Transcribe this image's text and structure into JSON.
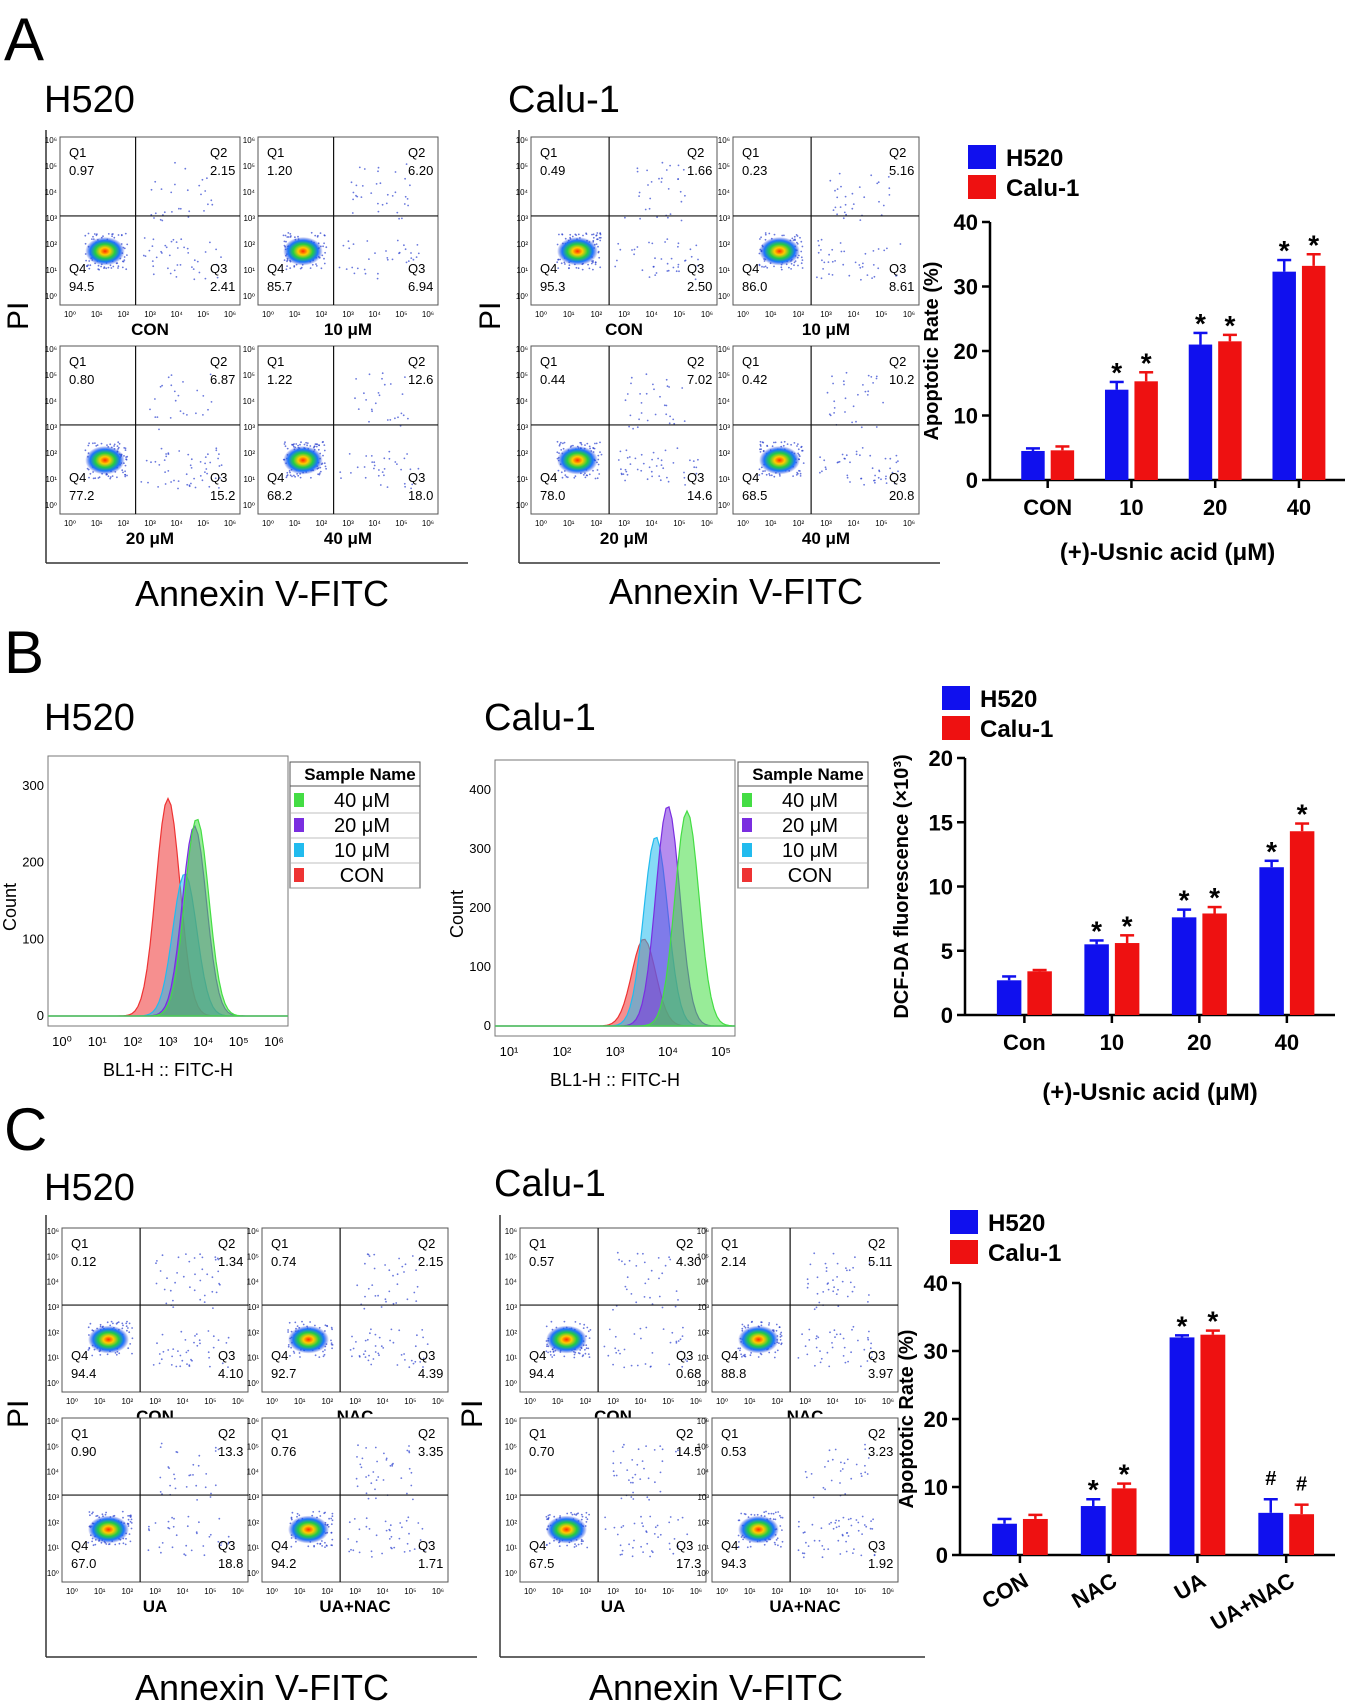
{
  "panels": [
    {
      "letter": "A",
      "flow": [
        {
          "cell": "H520",
          "ylabel": "PI",
          "xlabel": "Annexin V-FITC",
          "plots": [
            {
              "label": "CON",
              "q1": "0.97",
              "q2": "2.15",
              "q3": "2.41",
              "q4": "94.5"
            },
            {
              "label": "10 μM",
              "q1": "1.20",
              "q2": "6.20",
              "q3": "6.94",
              "q4": "85.7"
            },
            {
              "label": "20 μM",
              "q1": "0.80",
              "q2": "6.87",
              "q3": "15.2",
              "q4": "77.2"
            },
            {
              "label": "40 μM",
              "q1": "1.22",
              "q2": "12.6",
              "q3": "18.0",
              "q4": "68.2"
            }
          ]
        },
        {
          "cell": "Calu-1",
          "ylabel": "PI",
          "xlabel": "Annexin V-FITC",
          "plots": [
            {
              "label": "CON",
              "q1": "0.49",
              "q2": "1.66",
              "q3": "2.50",
              "q4": "95.3"
            },
            {
              "label": "10 μM",
              "q1": "0.23",
              "q2": "5.16",
              "q3": "8.61",
              "q4": "86.0"
            },
            {
              "label": "20 μM",
              "q1": "0.44",
              "q2": "7.02",
              "q3": "14.6",
              "q4": "78.0"
            },
            {
              "label": "40 μM",
              "q1": "0.42",
              "q2": "10.2",
              "q3": "20.8",
              "q4": "68.5"
            }
          ]
        }
      ]
    },
    {
      "letter": "B",
      "histograms": [
        {
          "cell": "H520",
          "ylabel": "Count",
          "xlabel": "BL1-H :: FITC-H",
          "yticks": [
            "0",
            "100",
            "200",
            "300"
          ],
          "xticks": [
            "10⁰",
            "10¹",
            "10²",
            "10³",
            "10⁴",
            "10⁵",
            "10⁶"
          ],
          "legend_header": "Sample Name",
          "legend": [
            "40 μM",
            "20 μM",
            "10 μM",
            "CON"
          ]
        },
        {
          "cell": "Calu-1",
          "ylabel": "Count",
          "xlabel": "BL1-H :: FITC-H",
          "yticks": [
            "0",
            "100",
            "200",
            "300",
            "400"
          ],
          "xticks": [
            "10¹",
            "10²",
            "10³",
            "10⁴",
            "10⁵"
          ],
          "legend_header": "Sample Name",
          "legend": [
            "40 μM",
            "20 μM",
            "10 μM",
            "CON"
          ]
        }
      ]
    },
    {
      "letter": "C",
      "flow": [
        {
          "cell": "H520",
          "ylabel": "PI",
          "xlabel": "Annexin V-FITC",
          "plots": [
            {
              "label": "CON",
              "q1": "0.12",
              "q2": "1.34",
              "q3": "4.10",
              "q4": "94.4"
            },
            {
              "label": "NAC",
              "q1": "0.74",
              "q2": "2.15",
              "q3": "4.39",
              "q4": "92.7"
            },
            {
              "label": "UA",
              "q1": "0.90",
              "q2": "13.3",
              "q3": "18.8",
              "q4": "67.0"
            },
            {
              "label": "UA+NAC",
              "q1": "0.76",
              "q2": "3.35",
              "q3": "1.71",
              "q4": "94.2"
            }
          ]
        },
        {
          "cell": "Calu-1",
          "ylabel": "PI",
          "xlabel": "Annexin V-FITC",
          "plots": [
            {
              "label": "CON",
              "q1": "0.57",
              "q2": "4.30",
              "q3": "0.68",
              "q4": "94.4"
            },
            {
              "label": "NAC",
              "q1": "2.14",
              "q2": "5.11",
              "q3": "3.97",
              "q4": "88.8"
            },
            {
              "label": "UA",
              "q1": "0.70",
              "q2": "14.5",
              "q3": "17.3",
              "q4": "67.5"
            },
            {
              "label": "UA+NAC",
              "q1": "0.53",
              "q2": "3.23",
              "q3": "1.92",
              "q4": "94.3"
            }
          ]
        }
      ]
    }
  ],
  "flow_tick_labels": [
    "10⁰",
    "10¹",
    "10²",
    "10³",
    "10⁴",
    "10⁵",
    "10⁶"
  ],
  "quadrant_names": [
    "Q1",
    "Q2",
    "Q3",
    "Q4"
  ],
  "colors": {
    "h520": "#1010ee",
    "calu1": "#ee1111"
  },
  "chart_data": [
    {
      "type": "bar",
      "panel": "A",
      "categories": [
        "CON",
        "10",
        "20",
        "40"
      ],
      "series": [
        {
          "name": "H520",
          "values": [
            4.5,
            14.0,
            21.0,
            32.3
          ],
          "errors": [
            0.4,
            1.2,
            1.8,
            1.8
          ],
          "sig": [
            "",
            "*",
            "*",
            "*"
          ]
        },
        {
          "name": "Calu-1",
          "values": [
            4.6,
            15.3,
            21.5,
            33.2
          ],
          "errors": [
            0.6,
            1.4,
            1.0,
            1.8
          ],
          "sig": [
            "",
            "*",
            "*",
            "*"
          ]
        }
      ],
      "xlabel": "(+)-Usnic acid (μM)",
      "ylabel": "Apoptotic Rate (%)",
      "ylim": [
        0,
        40
      ],
      "yticks": [
        "0",
        "10",
        "20",
        "30",
        "40"
      ]
    },
    {
      "type": "bar",
      "panel": "B",
      "categories": [
        "Con",
        "10",
        "20",
        "40"
      ],
      "series": [
        {
          "name": "H520",
          "values": [
            2.7,
            5.5,
            7.6,
            11.5
          ],
          "errors": [
            0.3,
            0.3,
            0.6,
            0.5
          ],
          "sig": [
            "",
            "*",
            "*",
            "*"
          ]
        },
        {
          "name": "Calu-1",
          "values": [
            3.4,
            5.6,
            7.9,
            14.3
          ],
          "errors": [
            0.1,
            0.6,
            0.5,
            0.6
          ],
          "sig": [
            "",
            "*",
            "*",
            "*"
          ]
        }
      ],
      "xlabel": "(+)-Usnic acid (μM)",
      "ylabel": "DCF-DA fluorescence (×10³)",
      "ylim": [
        0,
        20
      ],
      "yticks": [
        "0",
        "5",
        "10",
        "15",
        "20"
      ]
    },
    {
      "type": "bar",
      "panel": "C",
      "categories": [
        "CON",
        "NAC",
        "UA",
        "UA+NAC"
      ],
      "series": [
        {
          "name": "H520",
          "values": [
            4.6,
            7.2,
            32.0,
            6.2
          ],
          "errors": [
            0.7,
            1.0,
            0.3,
            2.0
          ],
          "sig": [
            "",
            "*",
            "*",
            "#"
          ]
        },
        {
          "name": "Calu-1",
          "values": [
            5.3,
            9.8,
            32.4,
            6.0
          ],
          "errors": [
            0.6,
            0.7,
            0.6,
            1.4
          ],
          "sig": [
            "",
            "*",
            "*",
            "#"
          ]
        }
      ],
      "xlabel": "",
      "ylabel": "Apoptotic Rate (%)",
      "ylim": [
        0,
        40
      ],
      "yticks": [
        "0",
        "10",
        "20",
        "30",
        "40"
      ]
    }
  ]
}
